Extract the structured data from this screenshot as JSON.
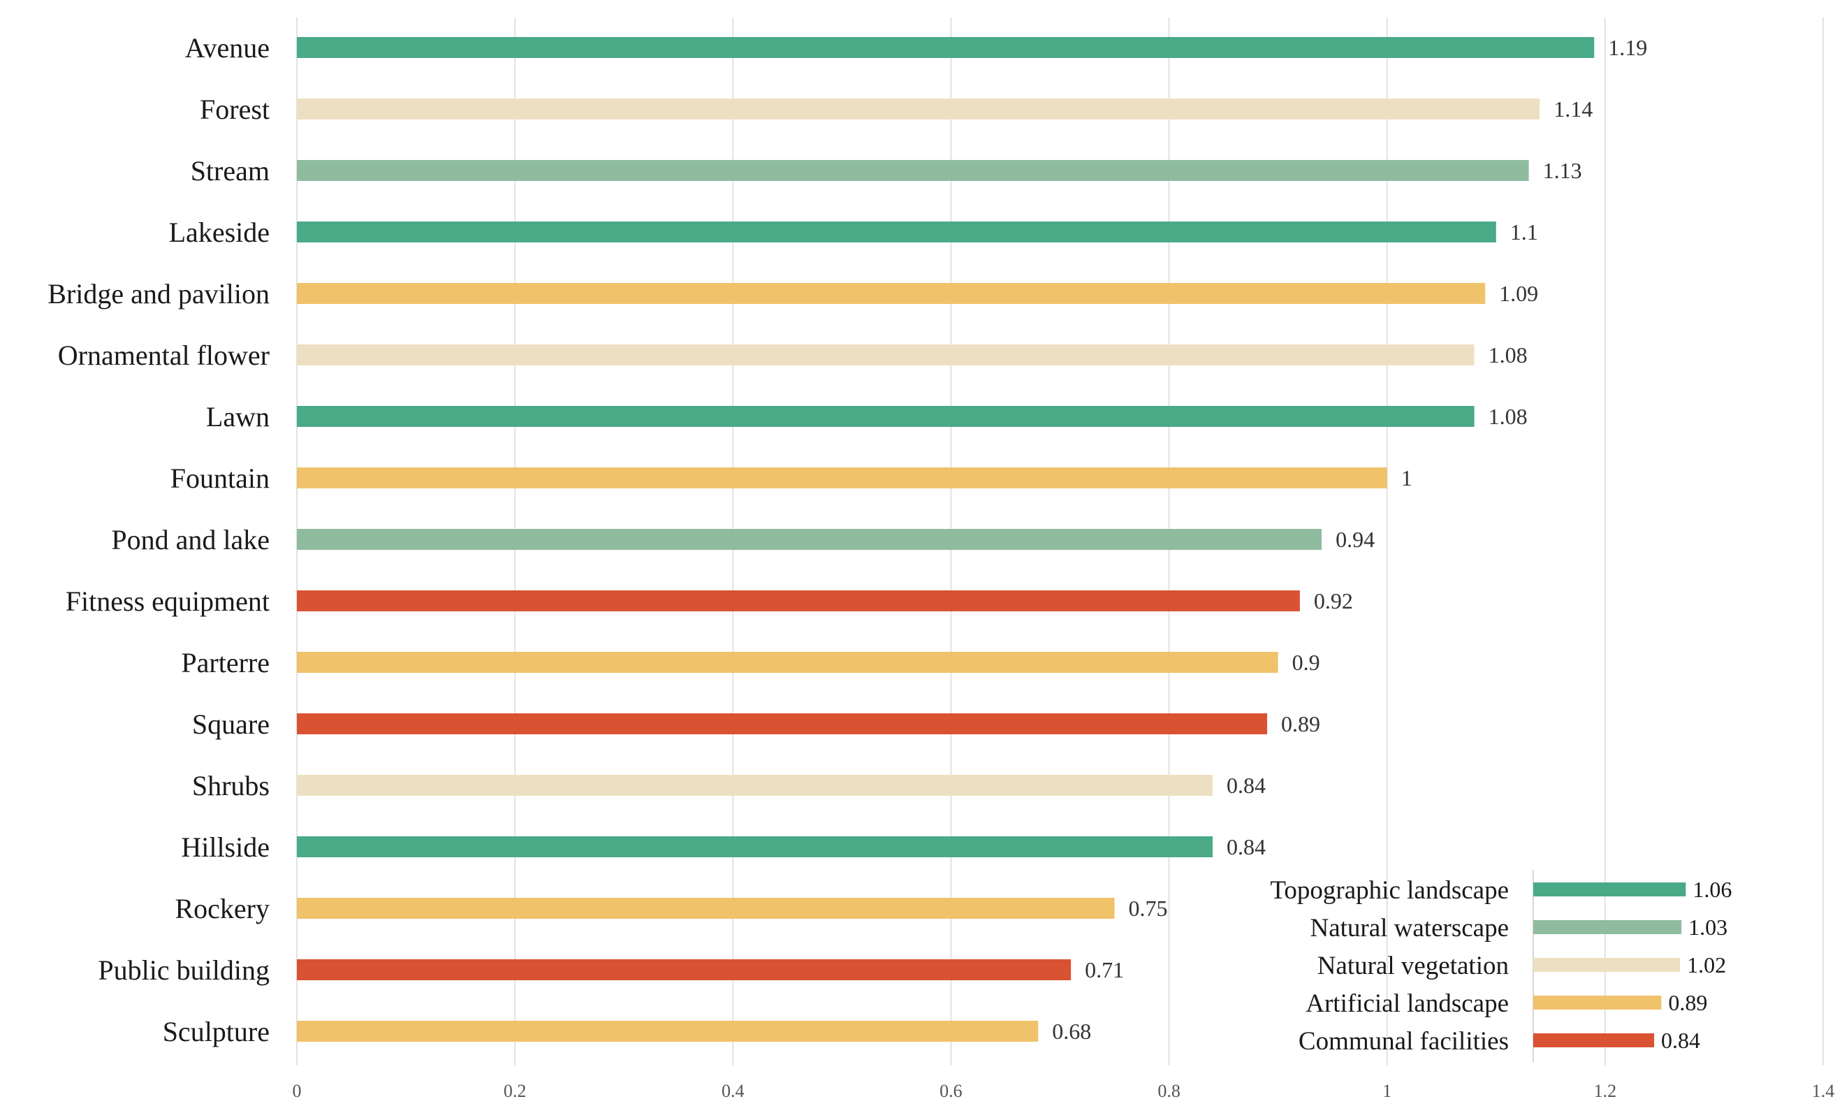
{
  "chart_data": {
    "type": "bar",
    "orientation": "horizontal",
    "categories": [
      "Avenue",
      "Forest",
      "Stream",
      "Lakeside",
      "Bridge and pavilion",
      "Ornamental flower",
      "Lawn",
      "Fountain",
      "Pond and lake",
      "Fitness equipment",
      "Parterre",
      "Square",
      "Shrubs",
      "Hillside",
      "Rockery",
      "Public building",
      "Sculpture"
    ],
    "values": [
      1.19,
      1.14,
      1.13,
      1.1,
      1.09,
      1.08,
      1.08,
      1,
      0.94,
      0.92,
      0.9,
      0.89,
      0.84,
      0.84,
      0.75,
      0.71,
      0.68
    ],
    "value_labels": [
      "1.19",
      "1.14",
      "1.13",
      "1.1",
      "1.09",
      "1.08",
      "1.08",
      "1",
      "0.94",
      "0.92",
      "0.9",
      "0.89",
      "0.84",
      "0.84",
      "0.75",
      "0.71",
      "0.68"
    ],
    "groups": [
      "Topographic landscape",
      "Natural vegetation",
      "Natural waterscape",
      "Topographic landscape",
      "Artificial landscape",
      "Natural vegetation",
      "Topographic landscape",
      "Artificial landscape",
      "Natural waterscape",
      "Communal facilities",
      "Artificial landscape",
      "Communal facilities",
      "Natural vegetation",
      "Topographic landscape",
      "Artificial landscape",
      "Communal facilities",
      "Artificial landscape"
    ],
    "xlim": [
      0,
      1.4
    ],
    "x_ticks": [
      "0",
      "0.2",
      "0.4",
      "0.6",
      "0.8",
      "1",
      "1.2",
      "1.4"
    ],
    "title": "",
    "xlabel": "",
    "ylabel": "",
    "grid": true,
    "legend_position": "bottom-right",
    "legend": [
      {
        "name": "Topographic landscape",
        "value": 1.06,
        "value_label": "1.06",
        "color": "#4aaa88"
      },
      {
        "name": "Natural waterscape",
        "value": 1.03,
        "value_label": "1.03",
        "color": "#8fbc9f"
      },
      {
        "name": "Natural vegetation",
        "value": 1.02,
        "value_label": "1.02",
        "color": "#ede0c2"
      },
      {
        "name": "Artificial landscape",
        "value": 0.89,
        "value_label": "0.89",
        "color": "#f0c26a"
      },
      {
        "name": "Communal facilities",
        "value": 0.84,
        "value_label": "0.84",
        "color": "#d95232"
      }
    ],
    "group_colors": {
      "Topographic landscape": "#4aaa88",
      "Natural waterscape": "#8fbc9f",
      "Natural vegetation": "#ede0c2",
      "Artificial landscape": "#f0c26a",
      "Communal facilities": "#d95232"
    }
  }
}
